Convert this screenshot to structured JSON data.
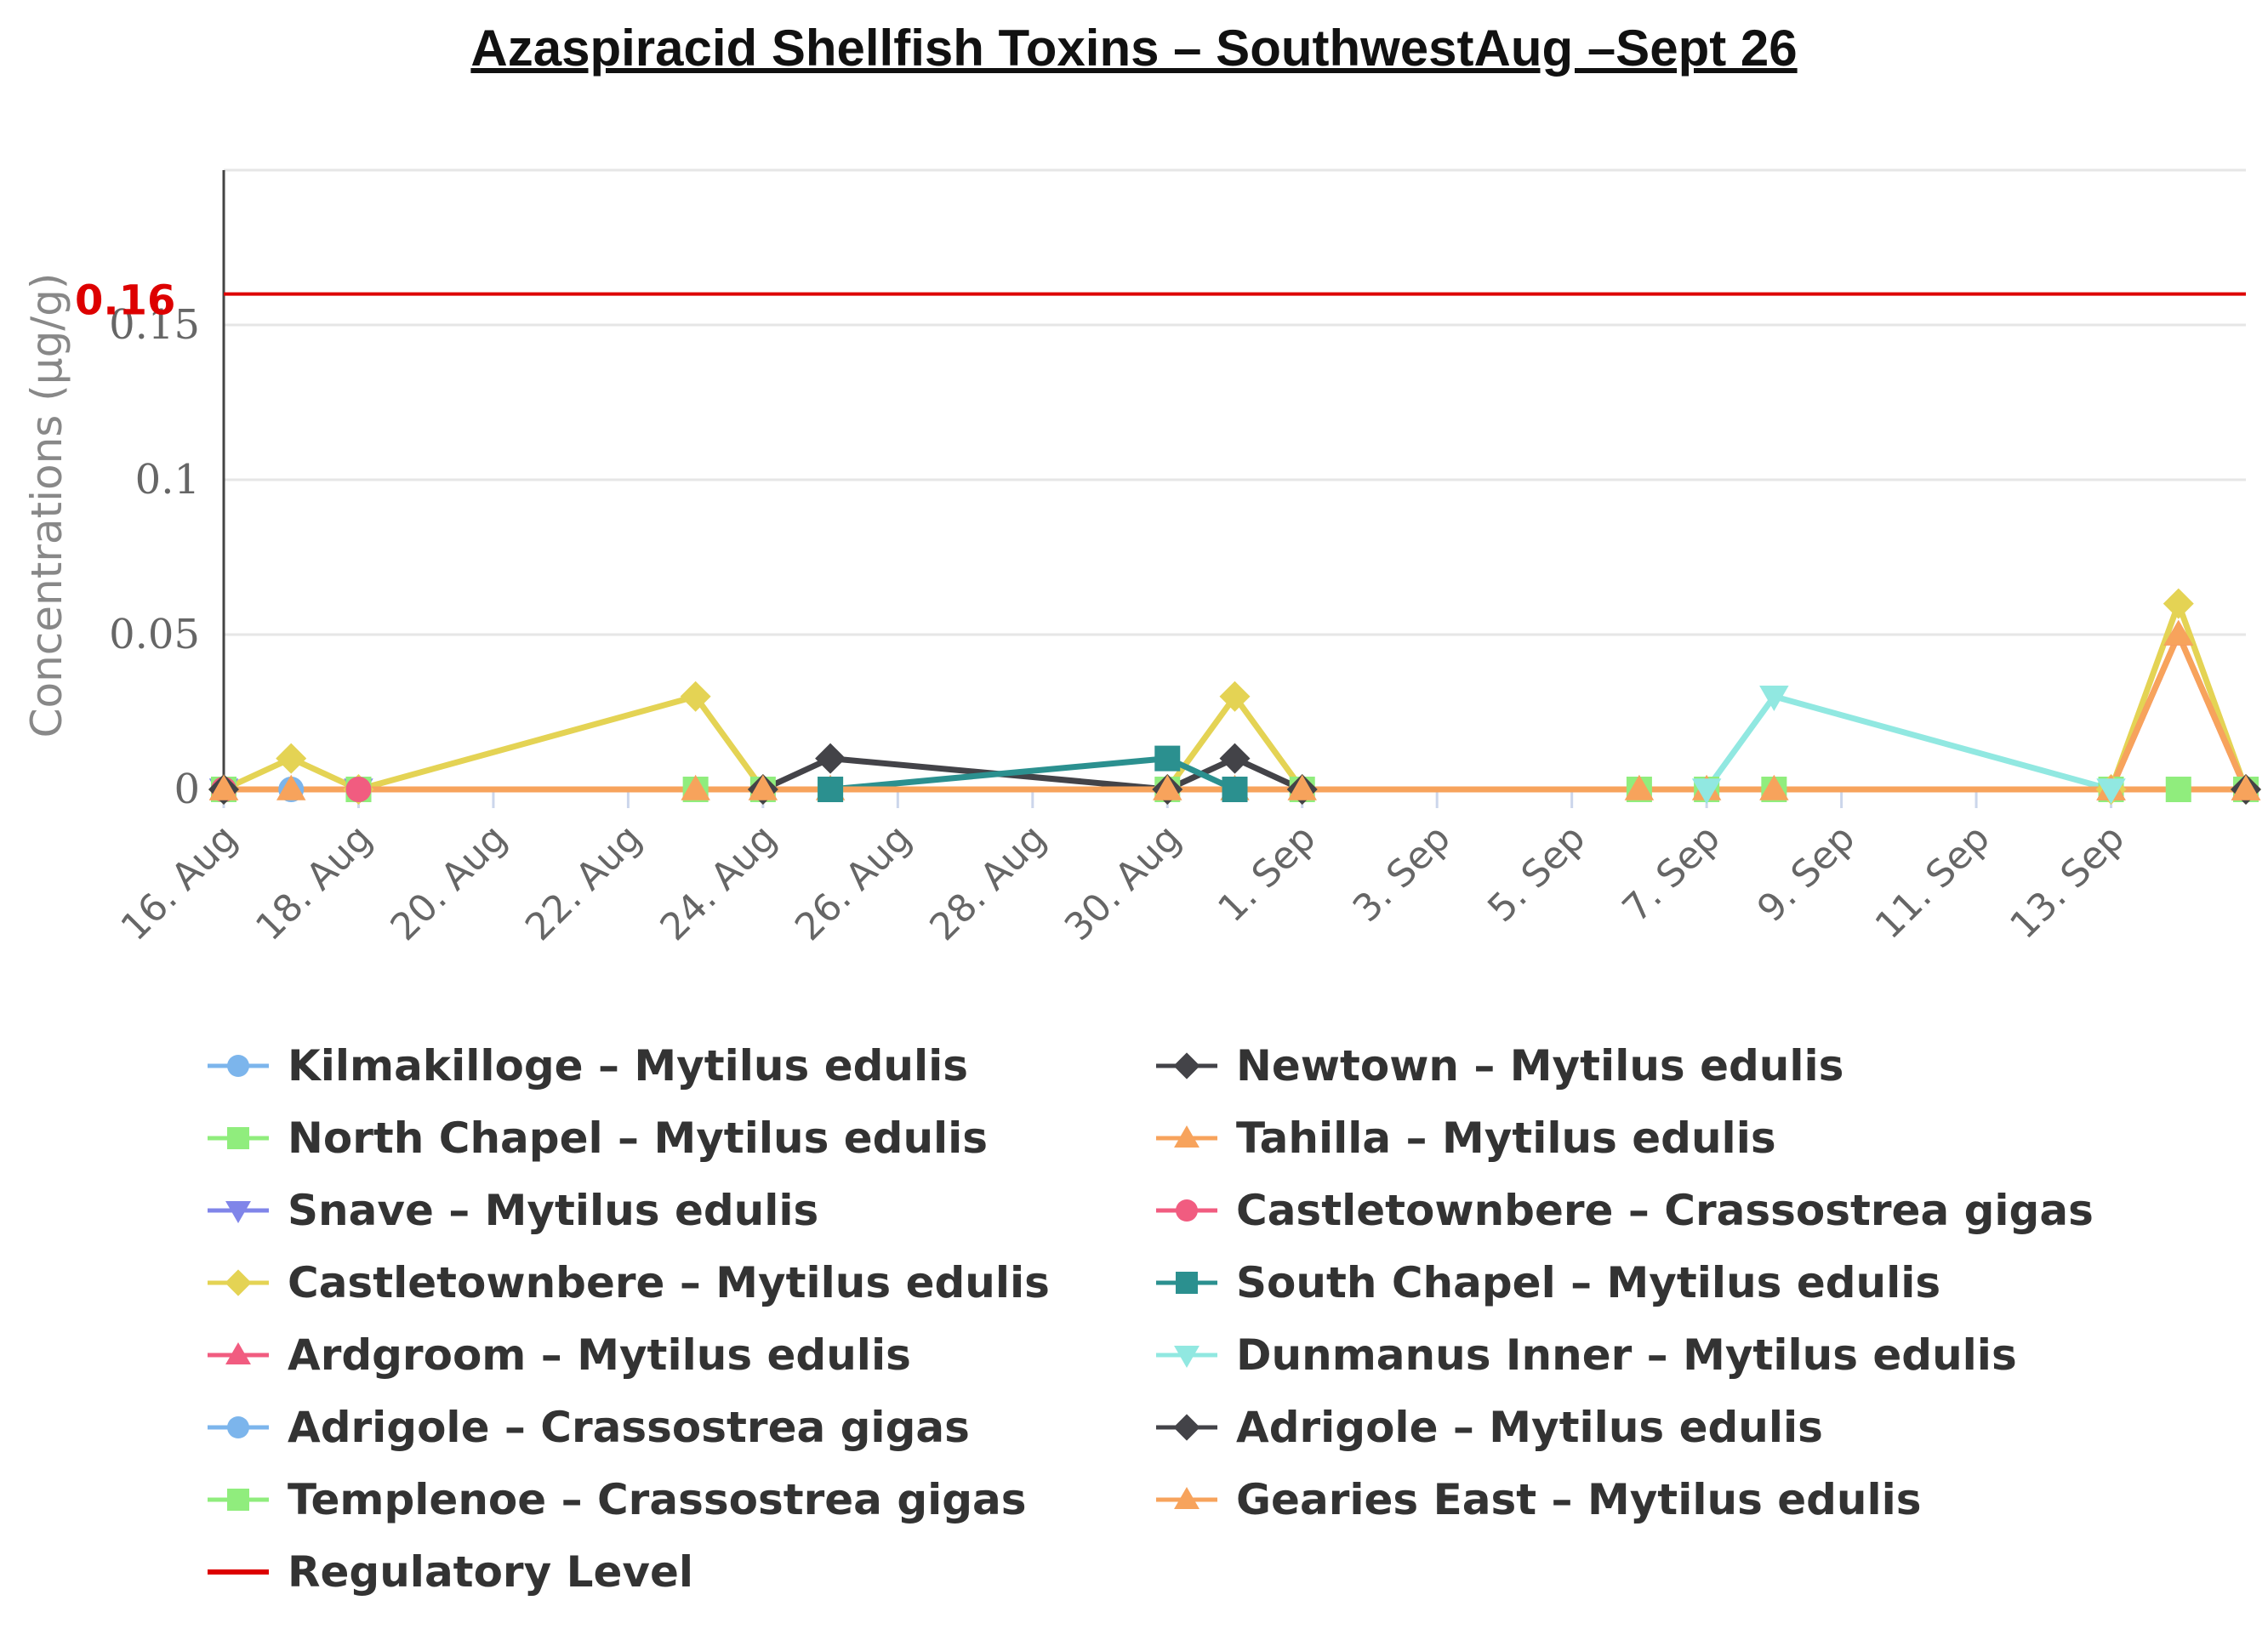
{
  "chart_data": {
    "type": "line",
    "title": "Azaspiracid Shellfish Toxins  – SouthwestAug –Sept 26",
    "ylabel": "Concentrations (µg/g)",
    "xlabel": "",
    "ylim": [
      0,
      0.2
    ],
    "yticks": [
      0,
      0.05,
      0.1,
      0.15
    ],
    "ytick_labels": [
      "0",
      "0.05",
      "0.1",
      "0.15"
    ],
    "xlim": [
      "2024-08-16",
      "2024-09-15"
    ],
    "xticks": [
      "2024-08-16",
      "2024-08-18",
      "2024-08-20",
      "2024-08-22",
      "2024-08-24",
      "2024-08-26",
      "2024-08-28",
      "2024-08-30",
      "2024-09-01",
      "2024-09-03",
      "2024-09-05",
      "2024-09-07",
      "2024-09-09",
      "2024-09-11",
      "2024-09-13"
    ],
    "xtick_labels": [
      "16. Aug",
      "18. Aug",
      "20. Aug",
      "22. Aug",
      "24. Aug",
      "26. Aug",
      "28. Aug",
      "30. Aug",
      "1. Sep",
      "3. Sep",
      "5. Sep",
      "7. Sep",
      "9. Sep",
      "11. Sep",
      "13. Sep"
    ],
    "regulatory_level": {
      "value": 0.16,
      "label": "0.16",
      "color": "#dd0000"
    },
    "grid": true,
    "legend_position": "bottom",
    "series": [
      {
        "name": "Kilmakilloge – Mytilus edulis",
        "color": "#7cb5ec",
        "marker": "circle",
        "x": [
          "2024-08-16",
          "2024-08-17"
        ],
        "values": [
          0,
          0
        ]
      },
      {
        "name": "North Chapel – Mytilus edulis",
        "color": "#90ed7d",
        "marker": "square",
        "x": [
          "2024-08-16",
          "2024-08-18",
          "2024-08-23",
          "2024-08-24",
          "2024-08-25",
          "2024-08-30",
          "2024-08-31",
          "2024-09-01",
          "2024-09-06",
          "2024-09-07",
          "2024-09-08",
          "2024-09-13",
          "2024-09-14",
          "2024-09-15"
        ],
        "values": [
          0,
          0,
          0,
          0,
          0,
          0,
          0,
          0,
          0,
          0,
          0,
          0,
          0,
          0
        ]
      },
      {
        "name": "Snave – Mytilus edulis",
        "color": "#8085e9",
        "marker": "triangle-down",
        "x": [
          "2024-08-16",
          "2024-08-18"
        ],
        "values": [
          0,
          0
        ]
      },
      {
        "name": "Castletownbere – Mytilus edulis",
        "color": "#e4d354",
        "marker": "diamond",
        "x": [
          "2024-08-16",
          "2024-08-17",
          "2024-08-18",
          "2024-08-23",
          "2024-08-24",
          "2024-08-30",
          "2024-08-31",
          "2024-09-01",
          "2024-09-13",
          "2024-09-14",
          "2024-09-15"
        ],
        "values": [
          0,
          0.01,
          0,
          0.03,
          0,
          0,
          0.03,
          0,
          0,
          0.06,
          0
        ]
      },
      {
        "name": "Ardgroom – Mytilus edulis",
        "color": "#f15c80",
        "marker": "triangle",
        "x": [
          "2024-09-13",
          "2024-09-14",
          "2024-09-15"
        ],
        "values": [
          0,
          0.05,
          0
        ]
      },
      {
        "name": "Adrigole – Crassostrea gigas",
        "color": "#7cb5ec",
        "marker": "circle",
        "x": [
          "2024-08-16",
          "2024-08-18"
        ],
        "values": [
          0,
          0
        ]
      },
      {
        "name": "Templenoe – Crassostrea gigas",
        "color": "#90ed7d",
        "marker": "square",
        "x": [
          "2024-08-16",
          "2024-08-18"
        ],
        "values": [
          0,
          0
        ]
      },
      {
        "name": "Regulatory Level",
        "color": "#dd0000",
        "marker": "none",
        "x": [
          "2024-08-16",
          "2024-09-15"
        ],
        "values": [
          0.16,
          0.16
        ]
      },
      {
        "name": "Newtown – Mytilus edulis",
        "color": "#434348",
        "marker": "diamond",
        "x": [
          "2024-08-24",
          "2024-08-25",
          "2024-08-30",
          "2024-08-31",
          "2024-09-01"
        ],
        "values": [
          0,
          0.01,
          0,
          0.01,
          0
        ]
      },
      {
        "name": "Tahilla – Mytilus edulis",
        "color": "#f7a35c",
        "marker": "triangle",
        "x": [
          "2024-08-16",
          "2024-08-17",
          "2024-08-23",
          "2024-08-24",
          "2024-08-25",
          "2024-08-30",
          "2024-08-31",
          "2024-09-01",
          "2024-09-06",
          "2024-09-07",
          "2024-09-08",
          "2024-09-13",
          "2024-09-14",
          "2024-09-15"
        ],
        "values": [
          0,
          0,
          0,
          0,
          0,
          0,
          0,
          0,
          0,
          0,
          0,
          0,
          0.05,
          0
        ]
      },
      {
        "name": "Castletownbere – Crassostrea gigas",
        "color": "#f15c80",
        "marker": "circle",
        "x": [
          "2024-08-16",
          "2024-08-18"
        ],
        "values": [
          0,
          0
        ]
      },
      {
        "name": "South Chapel – Mytilus edulis",
        "color": "#2b908f",
        "marker": "square",
        "x": [
          "2024-08-25",
          "2024-08-30",
          "2024-08-31"
        ],
        "values": [
          0,
          0.01,
          0
        ]
      },
      {
        "name": "Dunmanus Inner – Mytilus edulis",
        "color": "#91e8e1",
        "marker": "triangle-down",
        "x": [
          "2024-09-07",
          "2024-09-08",
          "2024-09-13"
        ],
        "values": [
          0,
          0.03,
          0
        ]
      },
      {
        "name": "Adrigole – Mytilus edulis",
        "color": "#434348",
        "marker": "diamond",
        "x": [
          "2024-08-16",
          "2024-09-15"
        ],
        "values": [
          0,
          0
        ]
      },
      {
        "name": "Gearies East – Mytilus edulis",
        "color": "#f7a35c",
        "marker": "triangle",
        "x": [
          "2024-08-16",
          "2024-09-15"
        ],
        "values": [
          0,
          0
        ]
      }
    ],
    "legend_order": {
      "left": [
        "Kilmakilloge – Mytilus edulis",
        "North Chapel – Mytilus edulis",
        "Snave – Mytilus edulis",
        "Castletownbere – Mytilus edulis",
        "Ardgroom – Mytilus edulis",
        "Adrigole – Crassostrea gigas",
        "Templenoe – Crassostrea gigas",
        "Regulatory Level"
      ],
      "right": [
        "Newtown – Mytilus edulis",
        "Tahilla – Mytilus edulis",
        "Castletownbere – Crassostrea gigas",
        "South Chapel – Mytilus edulis",
        "Dunmanus Inner – Mytilus edulis",
        "Adrigole – Mytilus edulis",
        "Gearies East – Mytilus edulis"
      ]
    }
  }
}
